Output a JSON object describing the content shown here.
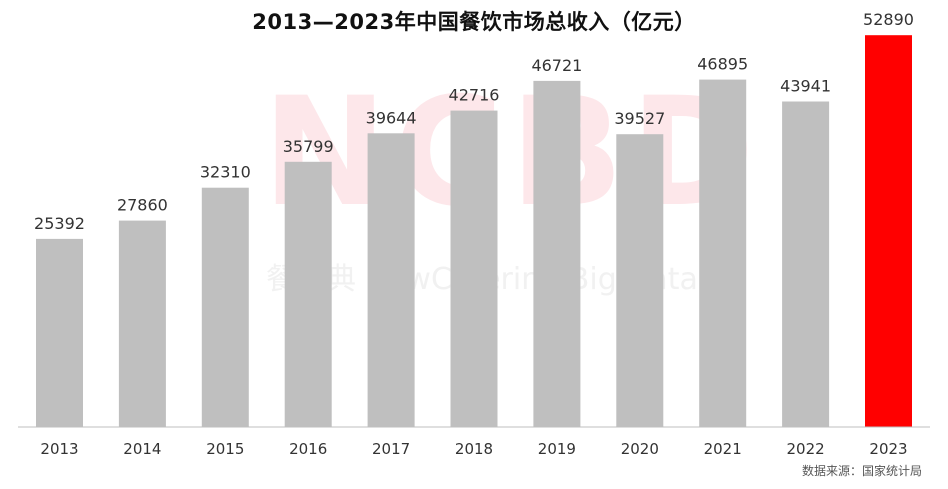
{
  "chart_data": {
    "type": "bar",
    "title": "2013—2023年中国餐饮市场总收入（亿元）",
    "categories": [
      "2013",
      "2014",
      "2015",
      "2016",
      "2017",
      "2018",
      "2019",
      "2020",
      "2021",
      "2022",
      "2023"
    ],
    "values": [
      25392,
      27860,
      32310,
      35799,
      39644,
      42716,
      46721,
      39527,
      46895,
      43941,
      52890
    ],
    "data_labels": [
      "25392",
      "27860",
      "32310",
      "35799",
      "39644",
      "42716",
      "46721",
      "39527",
      "46895",
      "43941",
      "52890"
    ],
    "highlight_index": 10,
    "ylim": [
      0,
      54000
    ],
    "xlabel": "",
    "ylabel": "",
    "grid": false,
    "legend": "none",
    "colors": {
      "bar": "#bfbfbf",
      "highlight": "#ff0000",
      "axis": "#bfbfbf",
      "text": "#333333"
    }
  },
  "source_note": "数据来源：国家统计局",
  "watermark": {
    "logo": "NCBD",
    "tagline": "餐宝典 NewCatering Big Data"
  }
}
